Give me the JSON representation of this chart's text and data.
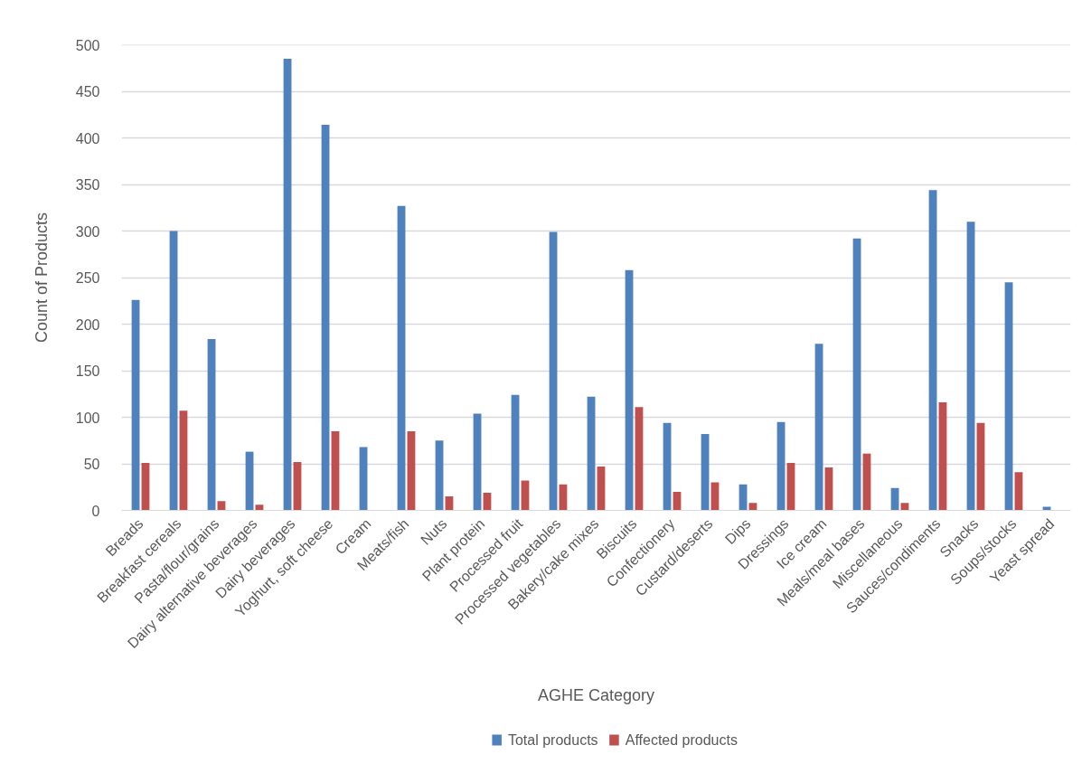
{
  "chart_data": {
    "type": "bar",
    "xlabel": "AGHE Category",
    "ylabel": "Count of Products",
    "categories": [
      "Breads",
      "Breakfast cereals",
      "Pasta/flour/grains",
      "Dairy alternative beverages",
      "Dairy beverages",
      "Yoghurt, soft cheese",
      "Cream",
      "Meats/fish",
      "Nuts",
      "Plant protein",
      "Processed fruit",
      "Processed vegetables",
      "Bakery/cake mixes",
      "Biscuits",
      "Confectionery",
      "Custard/deserts",
      "Dips",
      "Dressings",
      "Ice cream",
      "Meals/meal bases",
      "Miscellaneous",
      "Sauces/condiments",
      "Snacks",
      "Soups/stocks",
      "Yeast spread"
    ],
    "series": [
      {
        "name": "Total products",
        "color": "#4f81bd",
        "values": [
          226,
          300,
          184,
          63,
          485,
          414,
          68,
          327,
          75,
          104,
          124,
          299,
          122,
          258,
          94,
          82,
          28,
          95,
          179,
          292,
          24,
          344,
          310,
          245,
          4
        ]
      },
      {
        "name": "Affected products",
        "color": "#c0504d",
        "values": [
          51,
          107,
          10,
          6,
          52,
          85,
          null,
          85,
          15,
          19,
          32,
          28,
          47,
          111,
          20,
          30,
          8,
          51,
          46,
          61,
          8,
          116,
          94,
          41,
          null
        ]
      }
    ],
    "ylim": [
      0,
      500
    ],
    "yticks": [
      0,
      50,
      100,
      150,
      200,
      250,
      300,
      350,
      400,
      450,
      500
    ],
    "grid": "y",
    "legend": "bottom"
  }
}
